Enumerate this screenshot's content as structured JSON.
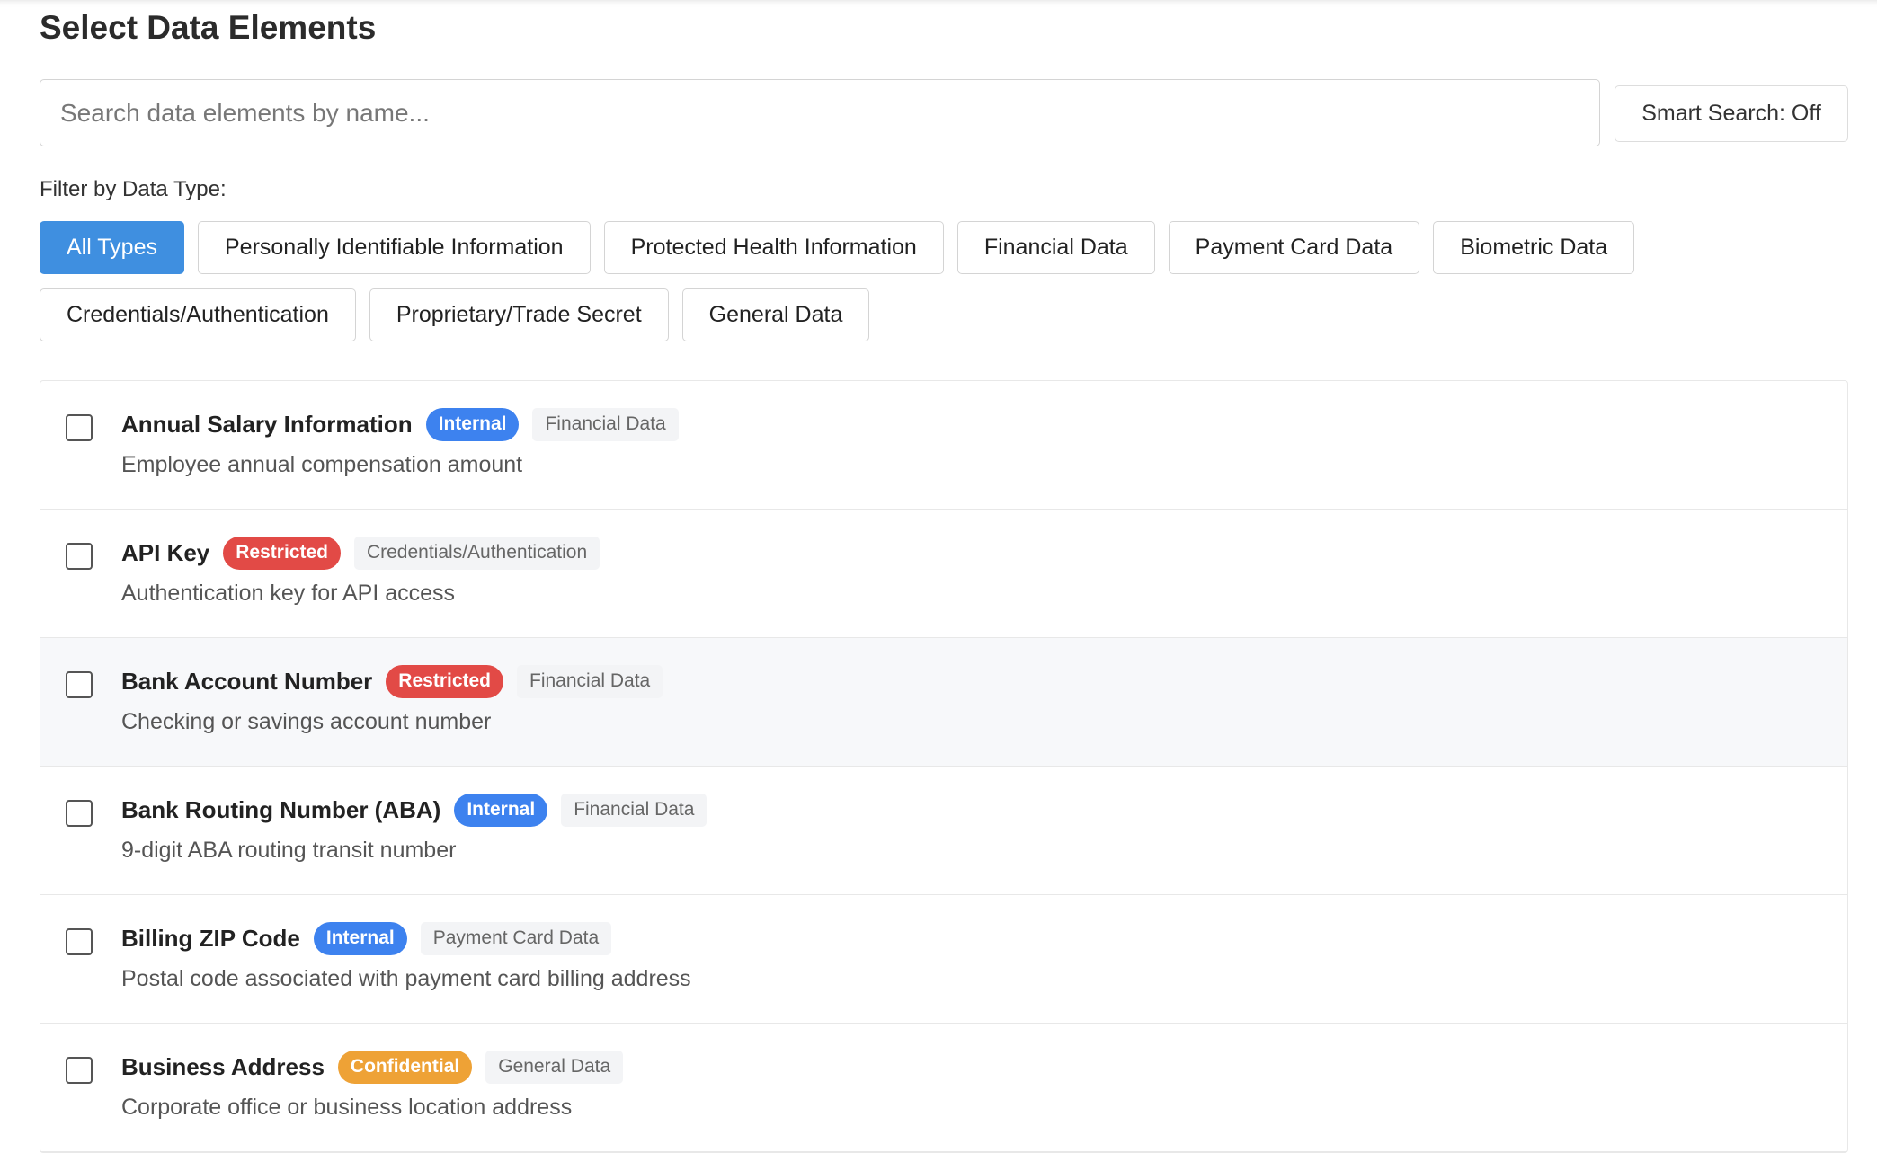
{
  "header": {
    "title": "Select Data Elements"
  },
  "search": {
    "placeholder": "Search data elements by name...",
    "smart_search": "Smart Search: Off"
  },
  "filter": {
    "label": "Filter by Data Type:",
    "options": [
      {
        "label": "All Types",
        "selected": true
      },
      {
        "label": "Personally Identifiable Information",
        "selected": false
      },
      {
        "label": "Protected Health Information",
        "selected": false
      },
      {
        "label": "Financial Data",
        "selected": false
      },
      {
        "label": "Payment Card Data",
        "selected": false
      },
      {
        "label": "Biometric Data",
        "selected": false
      },
      {
        "label": "Credentials/Authentication",
        "selected": false
      },
      {
        "label": "Proprietary/Trade Secret",
        "selected": false
      },
      {
        "label": "General Data",
        "selected": false
      }
    ]
  },
  "items": [
    {
      "name": "Annual Salary Information",
      "level": {
        "label": "Internal",
        "color": "#3d82ef"
      },
      "category": "Financial Data",
      "description": "Employee annual compensation amount"
    },
    {
      "name": "API Key",
      "level": {
        "label": "Restricted",
        "color": "#e24a46"
      },
      "category": "Credentials/Authentication",
      "description": "Authentication key for API access"
    },
    {
      "name": "Bank Account Number",
      "level": {
        "label": "Restricted",
        "color": "#e24a46"
      },
      "category": "Financial Data",
      "description": "Checking or savings account number"
    },
    {
      "name": "Bank Routing Number (ABA)",
      "level": {
        "label": "Internal",
        "color": "#3d82ef"
      },
      "category": "Financial Data",
      "description": "9-digit ABA routing transit number"
    },
    {
      "name": "Billing ZIP Code",
      "level": {
        "label": "Internal",
        "color": "#3d82ef"
      },
      "category": "Payment Card Data",
      "description": "Postal code associated with payment card billing address"
    },
    {
      "name": "Business Address",
      "level": {
        "label": "Confidential",
        "color": "#eea236"
      },
      "category": "General Data",
      "description": "Corporate office or business location address"
    }
  ]
}
